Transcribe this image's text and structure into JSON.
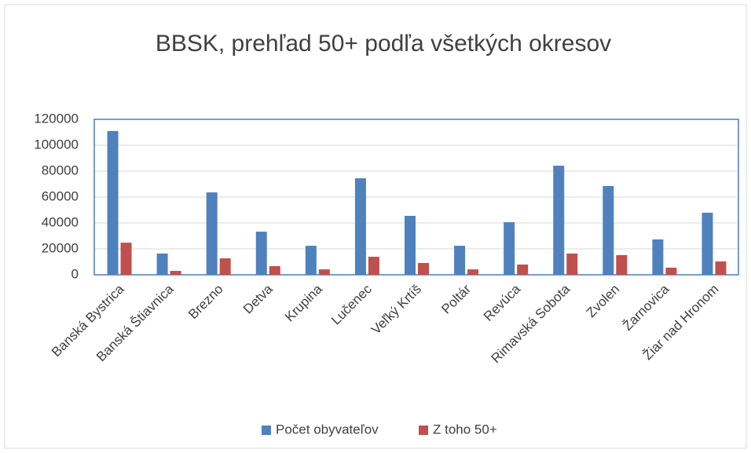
{
  "chart_data": {
    "type": "bar",
    "title": "BBSK, prehľad 50+ podľa všetkých okresov",
    "categories": [
      "Banská Bystrica",
      "Banská Štiavnica",
      "Brezno",
      "Detva",
      "Krupina",
      "Lučenec",
      "Veľký Krtíš",
      "Poltár",
      "Revúca",
      "Rimavská Sobota",
      "Zvolen",
      "Žarnovica",
      "Žiar nad Hronom"
    ],
    "series": [
      {
        "name": "Počet obyvateľov",
        "color": "#4f81bd",
        "values": [
          111000,
          16400,
          63600,
          33300,
          22400,
          74500,
          45500,
          22400,
          40600,
          84200,
          68500,
          27300,
          47900
        ]
      },
      {
        "name": "Z toho 50+",
        "color": "#c0504d",
        "values": [
          24800,
          3000,
          12700,
          6700,
          4200,
          13900,
          9100,
          4200,
          7900,
          16400,
          15200,
          5500,
          10300
        ]
      }
    ],
    "ylim": [
      0,
      120000
    ],
    "yticks": [
      0,
      20000,
      40000,
      60000,
      80000,
      100000,
      120000
    ],
    "grid": true,
    "legend": "bottom"
  }
}
